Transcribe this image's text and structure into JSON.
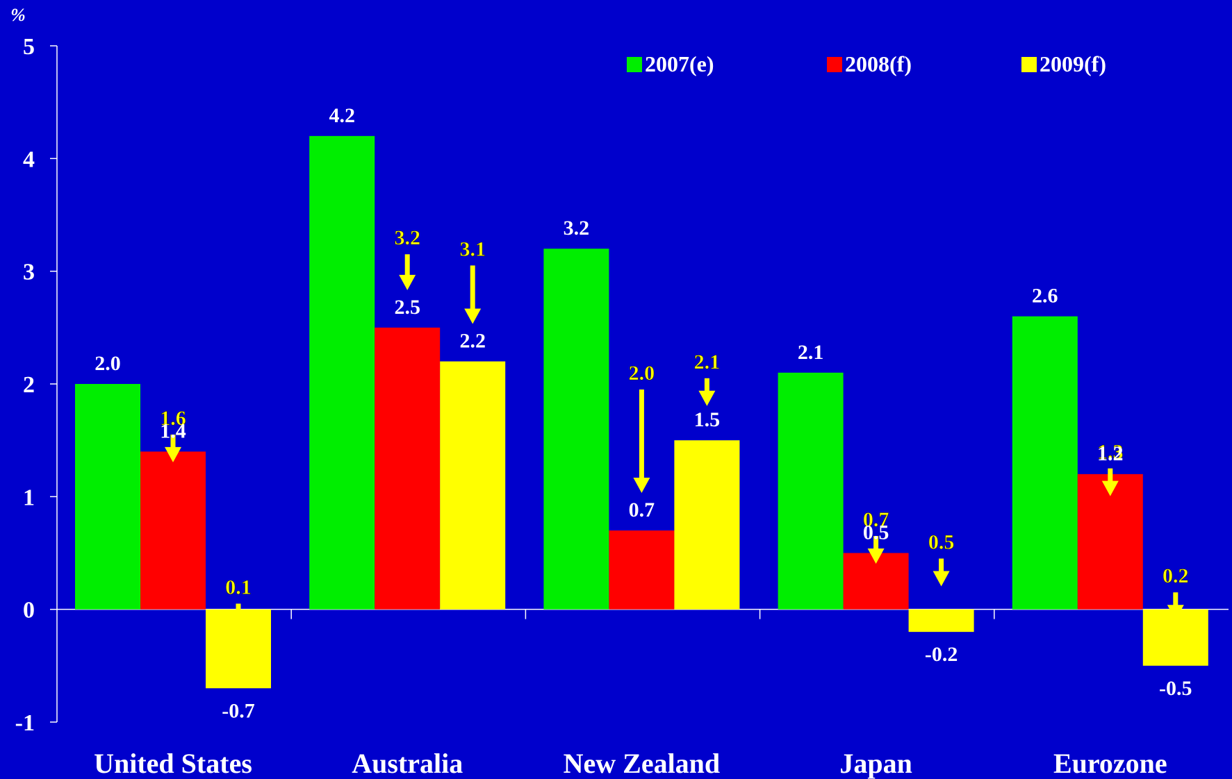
{
  "colors": {
    "background": "#0000cc",
    "axis": "#ffffff",
    "text": "#ffffff",
    "annotation": "#ffff00"
  },
  "chart_data": {
    "type": "bar",
    "ylabel": "%",
    "ylim": [
      -1,
      5
    ],
    "yticks": [
      -1,
      0,
      1,
      2,
      3,
      4,
      5
    ],
    "ytick_labels": [
      "-1",
      "0",
      "1",
      "2",
      "3",
      "4",
      "5"
    ],
    "categories": [
      "United States",
      "Australia",
      "New Zealand",
      "Japan",
      "Eurozone"
    ],
    "legend_position": "top-right",
    "grid": false,
    "series": [
      {
        "name": "2007(e)",
        "color": "#00ee00",
        "values": [
          2.0,
          4.2,
          3.2,
          2.1,
          2.6
        ],
        "labels": [
          "2.0",
          "4.2",
          "3.2",
          "2.1",
          "2.6"
        ]
      },
      {
        "name": "2008(f)",
        "color": "#ff0000",
        "values": [
          1.4,
          2.5,
          0.7,
          0.5,
          1.2
        ],
        "labels": [
          "1.4",
          "2.5",
          "0.7",
          "0.5",
          "1.2"
        ]
      },
      {
        "name": "2009(f)",
        "color": "#ffff00",
        "values": [
          -0.7,
          2.2,
          1.5,
          -0.2,
          -0.5
        ],
        "labels": [
          "-0.7",
          "2.2",
          "1.5",
          "-0.2",
          "-0.5"
        ]
      }
    ],
    "revisions": [
      {
        "category": "United States",
        "series": "2008(f)",
        "previous": 1.6,
        "previous_label": "1.6"
      },
      {
        "category": "United States",
        "series": "2009(f)",
        "previous": 0.1,
        "previous_label": "0.1"
      },
      {
        "category": "Australia",
        "series": "2008(f)",
        "previous": 3.2,
        "previous_label": "3.2"
      },
      {
        "category": "Australia",
        "series": "2009(f)",
        "previous": 3.1,
        "previous_label": "3.1"
      },
      {
        "category": "New Zealand",
        "series": "2008(f)",
        "previous": 2.0,
        "previous_label": "2.0"
      },
      {
        "category": "New Zealand",
        "series": "2009(f)",
        "previous": 2.1,
        "previous_label": "2.1"
      },
      {
        "category": "Japan",
        "series": "2008(f)",
        "previous": 0.7,
        "previous_label": "0.7"
      },
      {
        "category": "Japan",
        "series": "2009(f)",
        "previous": 0.5,
        "previous_label": "0.5"
      },
      {
        "category": "Eurozone",
        "series": "2008(f)",
        "previous": 1.3,
        "previous_label": "1.3"
      },
      {
        "category": "Eurozone",
        "series": "2009(f)",
        "previous": 0.2,
        "previous_label": "0.2"
      }
    ]
  }
}
